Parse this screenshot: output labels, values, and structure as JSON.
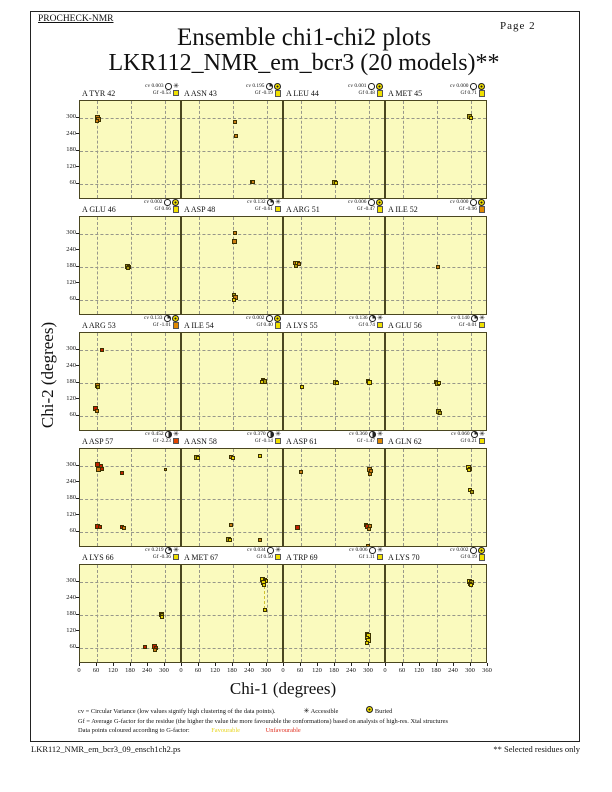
{
  "page": {
    "app_label": "PROCHECK-NMR",
    "page_label": "Page 2",
    "title": "Ensemble chi1-chi2 plots",
    "subtitle": "LKR112_NMR_em_bcr3 (20 models)**",
    "footer_left": "LKR112_NMR_em_bcr3_09_ensch1ch2.ps",
    "footer_right": "** Selected residues only"
  },
  "axes": {
    "xlabel": "Chi-1 (degrees)",
    "ylabel": "Chi-2 (degrees)",
    "xticks": [
      0,
      60,
      120,
      180,
      240,
      300
    ],
    "xtick_last": 360,
    "yticks": [
      60,
      120,
      180,
      240,
      300
    ],
    "gridlines": [
      60,
      180,
      300
    ],
    "range": [
      0,
      360
    ]
  },
  "colors": {
    "plot_bg": "#fafabe",
    "palette": {
      "Y": "#e6d400",
      "O": "#a89b10",
      "G": "#cc7d14",
      "R": "#c41f00"
    },
    "gf_palette": {
      "Y": "#f0e000",
      "G": "#e08800",
      "R": "#e04400"
    },
    "favourable_text": "#e8d520",
    "unfavourable_text": "#e03020"
  },
  "legend": {
    "line1": "cv = Circular Variance (low values signify high clustering of the data points).",
    "accessible_label": "Accessible",
    "buried_label": "Buried",
    "line2": "Gf = Average G-factor for the residue (the higher the value the more favourable the conformations) based on analysis of high-res. Xtal structures",
    "line3": "Data points coloured according to G-factor:",
    "favourable_label": "Favourable",
    "unfavourable_label": "Unfavourable"
  },
  "chart_data": {
    "type": "scatter",
    "title": "Ensemble chi1-chi2 plots",
    "xlabel": "Chi-1 (degrees)",
    "ylabel": "Chi-2 (degrees)",
    "xlim": [
      0,
      360
    ],
    "ylim": [
      0,
      360
    ],
    "grid": "dashed at 60/180/300 both axes",
    "legend_position": "bottom",
    "point_color_codes": "Y=favourable yellow, O=olive, G=orange, R=unfavourable red; size in px",
    "plots": [
      {
        "res": "A TYR 42",
        "cv": "0.003",
        "dial": 0,
        "acc": "A",
        "gf": "-0.53",
        "gf_color": "Y",
        "points": [
          [
            62,
            300,
            "G",
            5
          ],
          [
            66,
            292,
            "G",
            5
          ],
          [
            61,
            288,
            "G",
            4
          ]
        ]
      },
      {
        "res": "A ASN 43",
        "cv": "0.195",
        "dial": 0.25,
        "acc": "B",
        "gf": "-0.19",
        "gf_color": "Y",
        "points": [
          [
            186,
            284,
            "G",
            4
          ],
          [
            189,
            232,
            "G",
            4
          ],
          [
            246,
            67,
            "Y",
            4
          ],
          [
            251,
            65,
            "G",
            4
          ]
        ]
      },
      {
        "res": "A LEU 44",
        "cv": "0.001",
        "dial": 0,
        "acc": "B",
        "gf": "0.48",
        "gf_color": "Y",
        "points": [
          [
            177,
            64,
            "O",
            5
          ],
          [
            182,
            62,
            "Y",
            4
          ]
        ]
      },
      {
        "res": "A MET 45",
        "cv": "0.000",
        "dial": 0,
        "acc": "B",
        "gf": "0.71",
        "gf_color": "Y",
        "points": [
          [
            294,
            302,
            "O",
            5
          ],
          [
            299,
            297,
            "Y",
            4
          ]
        ]
      },
      {
        "res": "A GLU 46",
        "cv": "0.002",
        "dial": 0,
        "acc": "B",
        "gf": "0.66",
        "gf_color": "Y",
        "points": [
          [
            169,
            181,
            "O",
            5
          ],
          [
            174,
            178,
            "Y",
            4
          ],
          [
            168,
            176,
            "O",
            4
          ]
        ]
      },
      {
        "res": "A ASP 48",
        "cv": "0.132",
        "dial": 0.25,
        "acc": "A",
        "gf": "-0.61",
        "gf_color": "Y",
        "points": [
          [
            187,
            301,
            "G",
            4
          ],
          [
            186,
            272,
            "G",
            5
          ],
          [
            182,
            76,
            "O",
            4
          ],
          [
            188,
            68,
            "G",
            5
          ],
          [
            185,
            60,
            "Y",
            4
          ]
        ]
      },
      {
        "res": "A ARG 51",
        "cv": "0.006",
        "dial": 0,
        "acc": "B",
        "gf": "-0.47",
        "gf_color": "Y",
        "points": [
          [
            38,
            194,
            "G",
            4
          ],
          [
            46,
            191,
            "Y",
            5
          ],
          [
            53,
            188,
            "G",
            4
          ],
          [
            44,
            182,
            "O",
            4
          ]
        ]
      },
      {
        "res": "A ILE 52",
        "cv": "0.000",
        "dial": 0,
        "acc": "B",
        "gf": "-0.96",
        "gf_color": "G",
        "points": [
          [
            185,
            178,
            "G",
            4
          ]
        ]
      },
      {
        "res": "A ARG 53",
        "cv": "0.133",
        "dial": 0.25,
        "acc": "B",
        "gf": "-1.01",
        "gf_color": "G",
        "points": [
          [
            76,
            298,
            "R",
            4
          ],
          [
            60,
            170,
            "G",
            5
          ],
          [
            64,
            163,
            "O",
            4
          ],
          [
            55,
            84,
            "R",
            5
          ],
          [
            61,
            78,
            "G",
            4
          ]
        ]
      },
      {
        "res": "A ILE 54",
        "cv": "0.002",
        "dial": 0,
        "acc": "B",
        "gf": "0.40",
        "gf_color": "Y",
        "points": [
          [
            287,
            189,
            "Y",
            4
          ],
          [
            291,
            184,
            "O",
            5
          ],
          [
            284,
            182,
            "Y",
            4
          ]
        ]
      },
      {
        "res": "A LYS 55",
        "cv": "0.136",
        "dial": 0.25,
        "acc": "A",
        "gf": "0.74",
        "gf_color": "Y",
        "points": [
          [
            62,
            165,
            "Y",
            4
          ],
          [
            183,
            181,
            "O",
            5
          ],
          [
            188,
            177,
            "Y",
            4
          ],
          [
            297,
            185,
            "Y",
            4
          ],
          [
            303,
            181,
            "Y",
            5
          ]
        ]
      },
      {
        "res": "A GLU 56",
        "cv": "0.140",
        "dial": 0.25,
        "acc": "A",
        "gf": "-0.01",
        "gf_color": "Y",
        "points": [
          [
            177,
            181,
            "Y",
            4
          ],
          [
            182,
            176,
            "O",
            5
          ],
          [
            186,
            179,
            "Y",
            4
          ],
          [
            185,
            76,
            "O",
            5
          ],
          [
            189,
            68,
            "O",
            4
          ]
        ]
      },
      {
        "res": "A ASP 57",
        "cv": "0.452",
        "dial": 0.5,
        "acc": "A",
        "gf": "-2.23",
        "gf_color": "R",
        "points": [
          [
            63,
            304,
            "R",
            5
          ],
          [
            75,
            300,
            "R",
            4
          ],
          [
            66,
            286,
            "G",
            5
          ],
          [
            79,
            287,
            "R",
            4
          ],
          [
            148,
            272,
            "R",
            4
          ],
          [
            300,
            286,
            "G",
            3
          ],
          [
            61,
            80,
            "R",
            5
          ],
          [
            70,
            77,
            "R",
            4
          ],
          [
            147,
            78,
            "R",
            4
          ],
          [
            155,
            74,
            "G",
            4
          ]
        ]
      },
      {
        "res": "A ASN 58",
        "cv": "0.370",
        "dial": 0.5,
        "acc": "A",
        "gf": "-0.14",
        "gf_color": "Y",
        "points": [
          [
            50,
            330,
            "O",
            5
          ],
          [
            57,
            327,
            "Y",
            4
          ],
          [
            174,
            331,
            "G",
            4
          ],
          [
            180,
            329,
            "Y",
            4
          ],
          [
            276,
            333,
            "Y",
            4
          ],
          [
            172,
            84,
            "G",
            4
          ],
          [
            164,
            32,
            "O",
            5
          ],
          [
            170,
            28,
            "Y",
            4
          ],
          [
            277,
            29,
            "G",
            4
          ]
        ]
      },
      {
        "res": "A ASP 61",
        "cv": "0.360",
        "dial": 0.5,
        "acc": "A",
        "gf": "-1.47",
        "gf_color": "G",
        "points": [
          [
            60,
            277,
            "G",
            4
          ],
          [
            302,
            285,
            "G",
            5
          ],
          [
            308,
            279,
            "G",
            4
          ],
          [
            304,
            270,
            "G",
            4
          ],
          [
            49,
            74,
            "R",
            5
          ],
          [
            289,
            82,
            "G",
            4
          ],
          [
            296,
            78,
            "R",
            5
          ],
          [
            304,
            80,
            "G",
            4
          ],
          [
            299,
            70,
            "G",
            4
          ],
          [
            297,
            6,
            "G",
            4
          ]
        ]
      },
      {
        "res": "A GLN 62",
        "cv": "0.060",
        "dial": 0.25,
        "acc": "A",
        "gf": "0.21",
        "gf_color": "Y",
        "points": [
          [
            292,
            292,
            "Y",
            5
          ],
          [
            297,
            288,
            "O",
            4
          ],
          [
            294,
            282,
            "Y",
            4
          ],
          [
            298,
            210,
            "Y",
            4
          ],
          [
            302,
            205,
            "O",
            4
          ]
        ]
      },
      {
        "res": "A LYS 66",
        "cv": "0.219",
        "dial": 0.25,
        "acc": "A",
        "gf": "-0.36",
        "gf_color": "Y",
        "points": [
          [
            286,
            181,
            "O",
            5
          ],
          [
            291,
            177,
            "O",
            4
          ],
          [
            288,
            170,
            "Y",
            4
          ],
          [
            229,
            63,
            "R",
            4
          ],
          [
            262,
            62,
            "R",
            5
          ],
          [
            267,
            57,
            "R",
            4
          ],
          [
            263,
            50,
            "G",
            4
          ]
        ]
      },
      {
        "res": "A MET 67",
        "cv": "0.034",
        "dial": 0,
        "acc": "A",
        "gf": "0.50",
        "gf_color": "Y",
        "points": [
          [
            285,
            306,
            "Y",
            5
          ],
          [
            292,
            304,
            "O",
            4
          ],
          [
            297,
            301,
            "Y",
            4
          ],
          [
            288,
            296,
            "Y",
            5
          ],
          [
            291,
            287,
            "Y",
            4
          ],
          [
            292,
            197,
            "Y",
            4
          ]
        ],
        "lines": [
          [
            291,
            200,
            285
          ]
        ]
      },
      {
        "res": "A TRP 69",
        "cv": "0.006",
        "dial": 0,
        "acc": "A",
        "gf": "1.11",
        "gf_color": "Y",
        "points": [
          [
            293,
            109,
            "O",
            4
          ],
          [
            299,
            102,
            "Y",
            5
          ],
          [
            294,
            94,
            "Y",
            4
          ],
          [
            297,
            85,
            "Y",
            5
          ],
          [
            294,
            77,
            "Y",
            4
          ]
        ]
      },
      {
        "res": "A LYS 70",
        "cv": "0.002",
        "dial": 0,
        "acc": "B",
        "gf": "0.19",
        "gf_color": "Y",
        "points": [
          [
            293,
            301,
            "Y",
            5
          ],
          [
            300,
            297,
            "O",
            5
          ],
          [
            295,
            291,
            "Y",
            4
          ],
          [
            301,
            287,
            "Y",
            4
          ]
        ]
      }
    ]
  }
}
